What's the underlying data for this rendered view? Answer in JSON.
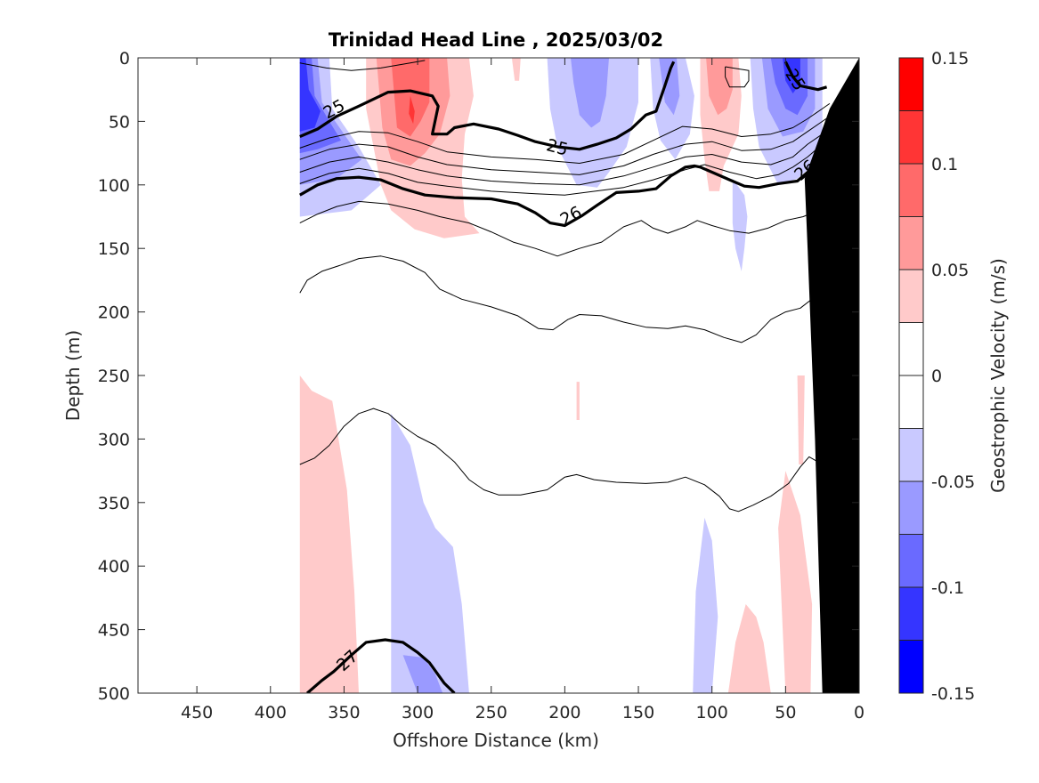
{
  "chart_data": {
    "type": "contour",
    "title": "Trinidad Head Line , 2025/03/02",
    "xlabel": "Offshore Distance (km)",
    "ylabel": "Depth (m)",
    "colorbar_label": "Geostrophic Velocity (m/s)",
    "xlim": [
      490,
      0
    ],
    "ylim": [
      500,
      0
    ],
    "x_ticks": [
      450,
      400,
      350,
      300,
      250,
      200,
      150,
      100,
      50,
      0
    ],
    "x_tick_labels": [
      "450",
      "400",
      "350",
      "300",
      "250",
      "200",
      "150",
      "100",
      "50",
      "0"
    ],
    "y_ticks": [
      0,
      50,
      100,
      150,
      200,
      250,
      300,
      350,
      400,
      450,
      500
    ],
    "y_tick_labels": [
      "0",
      "50",
      "100",
      "150",
      "200",
      "250",
      "300",
      "350",
      "400",
      "450",
      "500"
    ],
    "colorbar": {
      "range": [
        -0.15,
        0.15
      ],
      "levels": [
        -0.15,
        -0.125,
        -0.1,
        -0.075,
        -0.05,
        -0.025,
        0,
        0.025,
        0.05,
        0.075,
        0.1,
        0.125,
        0.15
      ],
      "colors": [
        "#0000ff",
        "#3535ff",
        "#6a6aff",
        "#9a9aff",
        "#c9c9ff",
        "#ffffff",
        "#ffffff",
        "#ffcaca",
        "#ff9a9a",
        "#ff6a6a",
        "#ff3535",
        "#ff0000"
      ],
      "tick_values": [
        0.15,
        0.1,
        0.05,
        0,
        -0.05,
        -0.1,
        -0.15
      ],
      "tick_labels": [
        "0.15",
        "0.1",
        "0.05",
        "0",
        "-0.05",
        "-0.1",
        "-0.15"
      ]
    },
    "density_contour_labels": [
      {
        "text": "25",
        "x": 357,
        "y": 40
      },
      {
        "text": "25",
        "x": 205,
        "y": 70
      },
      {
        "text": "25",
        "x": 43,
        "y": 17
      },
      {
        "text": "26",
        "x": 196,
        "y": 124
      },
      {
        "text": "26",
        "x": 37,
        "y": 88
      },
      {
        "text": "27",
        "x": 348,
        "y": 474
      }
    ],
    "density_contours": [
      {
        "level": "25",
        "bold": true,
        "points": [
          [
            380,
            62
          ],
          [
            368,
            56
          ],
          [
            355,
            46
          ],
          [
            340,
            38
          ],
          [
            320,
            27
          ],
          [
            305,
            26
          ],
          [
            290,
            30
          ],
          [
            286,
            38
          ],
          [
            290,
            60
          ],
          [
            280,
            60
          ],
          [
            275,
            55
          ],
          [
            262,
            52
          ],
          [
            245,
            56
          ],
          [
            232,
            61
          ],
          [
            220,
            66
          ],
          [
            205,
            70
          ],
          [
            190,
            72
          ],
          [
            178,
            68
          ],
          [
            165,
            63
          ],
          [
            155,
            56
          ],
          [
            145,
            45
          ],
          [
            138,
            42
          ],
          [
            132,
            22
          ],
          [
            128,
            8
          ],
          [
            126,
            3
          ]
        ]
      },
      {
        "level": "25",
        "bold": true,
        "points": [
          [
            50,
            3
          ],
          [
            45,
            15
          ],
          [
            40,
            22
          ],
          [
            28,
            25
          ],
          [
            22,
            23
          ]
        ]
      },
      {
        "level": "26",
        "bold": true,
        "points": [
          [
            380,
            108
          ],
          [
            368,
            100
          ],
          [
            355,
            95
          ],
          [
            340,
            94
          ],
          [
            325,
            96
          ],
          [
            310,
            103
          ],
          [
            295,
            108
          ],
          [
            275,
            110
          ],
          [
            250,
            111
          ],
          [
            232,
            115
          ],
          [
            220,
            122
          ],
          [
            210,
            130
          ],
          [
            200,
            132
          ],
          [
            188,
            124
          ],
          [
            178,
            116
          ],
          [
            165,
            106
          ],
          [
            150,
            105
          ],
          [
            138,
            103
          ],
          [
            128,
            93
          ],
          [
            118,
            86
          ],
          [
            112,
            85
          ],
          [
            108,
            86
          ],
          [
            100,
            90
          ],
          [
            88,
            96
          ],
          [
            78,
            101
          ],
          [
            68,
            102
          ],
          [
            55,
            99
          ],
          [
            42,
            97
          ],
          [
            33,
            88
          ],
          [
            26,
            80
          ],
          [
            20,
            72
          ]
        ]
      },
      {
        "level": "27",
        "bold": true,
        "points": [
          [
            375,
            500
          ],
          [
            365,
            490
          ],
          [
            357,
            483
          ],
          [
            345,
            470
          ],
          [
            335,
            460
          ],
          [
            322,
            458
          ],
          [
            310,
            460
          ],
          [
            300,
            468
          ],
          [
            292,
            476
          ],
          [
            282,
            492
          ],
          [
            275,
            500
          ]
        ]
      },
      {
        "level": "",
        "bold": false,
        "points": [
          [
            380,
            71
          ],
          [
            360,
            63
          ],
          [
            340,
            58
          ],
          [
            320,
            59
          ],
          [
            300,
            66
          ],
          [
            280,
            74
          ],
          [
            250,
            78
          ],
          [
            220,
            80
          ],
          [
            190,
            83
          ],
          [
            160,
            76
          ],
          [
            140,
            65
          ],
          [
            120,
            54
          ],
          [
            100,
            56
          ],
          [
            80,
            62
          ],
          [
            60,
            60
          ],
          [
            45,
            55
          ],
          [
            35,
            48
          ],
          [
            25,
            40
          ],
          [
            20,
            36
          ]
        ]
      },
      {
        "level": "",
        "bold": false,
        "points": [
          [
            380,
            80
          ],
          [
            360,
            72
          ],
          [
            340,
            68
          ],
          [
            320,
            70
          ],
          [
            300,
            78
          ],
          [
            280,
            84
          ],
          [
            250,
            88
          ],
          [
            220,
            90
          ],
          [
            190,
            92
          ],
          [
            160,
            85
          ],
          [
            140,
            76
          ],
          [
            118,
            68
          ],
          [
            100,
            66
          ],
          [
            80,
            73
          ],
          [
            60,
            72
          ],
          [
            45,
            66
          ],
          [
            35,
            58
          ],
          [
            25,
            50
          ],
          [
            20,
            46
          ]
        ]
      },
      {
        "level": "",
        "bold": false,
        "points": [
          [
            380,
            90
          ],
          [
            360,
            82
          ],
          [
            340,
            78
          ],
          [
            320,
            82
          ],
          [
            300,
            88
          ],
          [
            280,
            93
          ],
          [
            250,
            97
          ],
          [
            220,
            99
          ],
          [
            190,
            100
          ],
          [
            160,
            93
          ],
          [
            140,
            86
          ],
          [
            118,
            78
          ],
          [
            100,
            76
          ],
          [
            80,
            82
          ],
          [
            60,
            84
          ],
          [
            45,
            78
          ],
          [
            35,
            68
          ],
          [
            25,
            60
          ],
          [
            20,
            56
          ]
        ]
      },
      {
        "level": "",
        "bold": false,
        "points": [
          [
            380,
            99
          ],
          [
            360,
            91
          ],
          [
            340,
            87
          ],
          [
            320,
            91
          ],
          [
            300,
            98
          ],
          [
            280,
            101
          ],
          [
            250,
            105
          ],
          [
            220,
            107
          ],
          [
            200,
            108
          ],
          [
            160,
            102
          ],
          [
            140,
            96
          ],
          [
            118,
            88
          ],
          [
            105,
            84
          ],
          [
            88,
            90
          ],
          [
            70,
            95
          ],
          [
            55,
            92
          ],
          [
            45,
            86
          ],
          [
            35,
            78
          ],
          [
            25,
            68
          ],
          [
            20,
            64
          ]
        ]
      },
      {
        "level": "",
        "bold": false,
        "points": [
          [
            380,
            130
          ],
          [
            368,
            123
          ],
          [
            355,
            117
          ],
          [
            340,
            113
          ],
          [
            320,
            115
          ],
          [
            300,
            120
          ],
          [
            285,
            125
          ],
          [
            265,
            130
          ],
          [
            250,
            137
          ],
          [
            235,
            145
          ],
          [
            220,
            150
          ],
          [
            205,
            156
          ],
          [
            190,
            150
          ],
          [
            175,
            145
          ],
          [
            160,
            133
          ],
          [
            148,
            128
          ],
          [
            140,
            134
          ],
          [
            130,
            138
          ],
          [
            118,
            133
          ],
          [
            110,
            128
          ],
          [
            100,
            132
          ],
          [
            88,
            136
          ],
          [
            75,
            138
          ],
          [
            62,
            134
          ],
          [
            50,
            128
          ],
          [
            38,
            125
          ],
          [
            28,
            120
          ],
          [
            20,
            108
          ]
        ]
      },
      {
        "level": "",
        "bold": false,
        "points": [
          [
            380,
            185
          ],
          [
            375,
            175
          ],
          [
            365,
            168
          ],
          [
            352,
            163
          ],
          [
            340,
            158
          ],
          [
            325,
            156
          ],
          [
            310,
            160
          ],
          [
            295,
            169
          ],
          [
            285,
            182
          ],
          [
            270,
            190
          ],
          [
            250,
            196
          ],
          [
            232,
            203
          ],
          [
            218,
            213
          ],
          [
            208,
            214
          ],
          [
            198,
            206
          ],
          [
            190,
            202
          ],
          [
            175,
            203
          ],
          [
            160,
            208
          ],
          [
            145,
            212
          ],
          [
            130,
            213
          ],
          [
            118,
            211
          ],
          [
            105,
            214
          ],
          [
            92,
            220
          ],
          [
            80,
            224
          ],
          [
            70,
            218
          ],
          [
            60,
            206
          ],
          [
            50,
            200
          ],
          [
            40,
            197
          ],
          [
            30,
            188
          ],
          [
            25,
            178
          ],
          [
            18,
            176
          ]
        ]
      },
      {
        "level": "",
        "bold": false,
        "points": [
          [
            380,
            320
          ],
          [
            370,
            315
          ],
          [
            360,
            305
          ],
          [
            350,
            290
          ],
          [
            340,
            280
          ],
          [
            330,
            276
          ],
          [
            320,
            280
          ],
          [
            310,
            290
          ],
          [
            300,
            298
          ],
          [
            288,
            305
          ],
          [
            275,
            318
          ],
          [
            265,
            332
          ],
          [
            255,
            340
          ],
          [
            245,
            344
          ],
          [
            230,
            344
          ],
          [
            212,
            340
          ],
          [
            200,
            330
          ],
          [
            192,
            328
          ],
          [
            180,
            332
          ],
          [
            165,
            334
          ],
          [
            145,
            335
          ],
          [
            130,
            334
          ],
          [
            118,
            330
          ],
          [
            105,
            336
          ],
          [
            95,
            345
          ],
          [
            88,
            355
          ],
          [
            82,
            357
          ],
          [
            72,
            352
          ],
          [
            60,
            345
          ],
          [
            48,
            335
          ],
          [
            40,
            322
          ],
          [
            34,
            314
          ],
          [
            28,
            318
          ],
          [
            25,
            322
          ]
        ]
      },
      {
        "level": "",
        "bold": false,
        "points": [
          [
            91,
            7
          ],
          [
            86,
            8
          ],
          [
            75,
            10
          ],
          [
            75,
            18
          ],
          [
            78,
            23
          ],
          [
            88,
            23
          ],
          [
            91,
            15
          ],
          [
            91,
            7
          ]
        ]
      },
      {
        "level": "",
        "bold": false,
        "points": [
          [
            380,
            4
          ],
          [
            362,
            8
          ],
          [
            345,
            10
          ],
          [
            325,
            8
          ],
          [
            305,
            4
          ],
          [
            295,
            2
          ]
        ]
      }
    ]
  }
}
